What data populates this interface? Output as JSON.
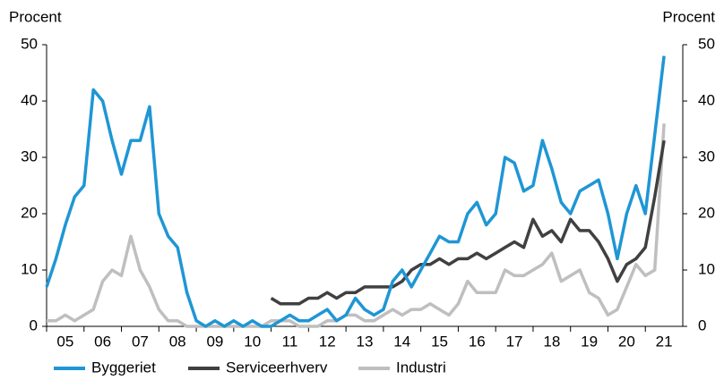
{
  "chart_data": {
    "type": "line",
    "ylabel": "Procent",
    "y2label": "Procent",
    "x": [
      2005,
      2005.25,
      2005.5,
      2005.75,
      2006,
      2006.25,
      2006.5,
      2006.75,
      2007,
      2007.25,
      2007.5,
      2007.75,
      2008,
      2008.25,
      2008.5,
      2008.75,
      2009,
      2009.25,
      2009.5,
      2009.75,
      2010,
      2010.25,
      2010.5,
      2010.75,
      2011,
      2011.25,
      2011.5,
      2011.75,
      2012,
      2012.25,
      2012.5,
      2012.75,
      2013,
      2013.25,
      2013.5,
      2013.75,
      2014,
      2014.25,
      2014.5,
      2014.75,
      2015,
      2015.25,
      2015.5,
      2015.75,
      2016,
      2016.25,
      2016.5,
      2016.75,
      2017,
      2017.25,
      2017.5,
      2017.75,
      2018,
      2018.25,
      2018.5,
      2018.75,
      2019,
      2019.25,
      2019.5,
      2019.75,
      2020,
      2020.25,
      2020.5,
      2020.75,
      2021,
      2021.25,
      2021.5
    ],
    "series": [
      {
        "name": "Byggeriet",
        "color": "#1f96d4",
        "values": [
          7,
          12,
          18,
          23,
          25,
          42,
          40,
          33,
          27,
          33,
          33,
          39,
          20,
          16,
          14,
          6,
          1,
          0,
          1,
          0,
          1,
          0,
          1,
          0,
          0,
          1,
          2,
          1,
          1,
          2,
          3,
          1,
          2,
          5,
          3,
          2,
          3,
          8,
          10,
          7,
          10,
          13,
          16,
          15,
          15,
          20,
          22,
          18,
          20,
          30,
          29,
          24,
          25,
          33,
          28,
          22,
          20,
          24,
          25,
          26,
          20,
          12,
          20,
          25,
          20,
          34,
          48
        ]
      },
      {
        "name": "Serviceerhverv",
        "color": "#404040",
        "values": [
          null,
          null,
          null,
          null,
          null,
          null,
          null,
          null,
          null,
          null,
          null,
          null,
          null,
          null,
          null,
          null,
          null,
          null,
          null,
          null,
          null,
          null,
          null,
          null,
          5,
          4,
          4,
          4,
          5,
          5,
          6,
          5,
          6,
          6,
          7,
          7,
          7,
          7,
          8,
          10,
          11,
          11,
          12,
          11,
          12,
          12,
          13,
          12,
          13,
          14,
          15,
          14,
          19,
          16,
          17,
          15,
          19,
          17,
          17,
          15,
          12,
          8,
          11,
          12,
          14,
          23,
          33
        ]
      },
      {
        "name": "Industri",
        "color": "#bfbfbf",
        "values": [
          1,
          1,
          2,
          1,
          2,
          3,
          8,
          10,
          9,
          16,
          10,
          7,
          3,
          1,
          1,
          0,
          0,
          0,
          0,
          0,
          0,
          0,
          0,
          0,
          1,
          1,
          1,
          0,
          0,
          0,
          1,
          1,
          2,
          2,
          1,
          1,
          2,
          3,
          2,
          3,
          3,
          4,
          3,
          2,
          4,
          8,
          6,
          6,
          6,
          10,
          9,
          9,
          10,
          11,
          13,
          8,
          9,
          10,
          6,
          5,
          2,
          3,
          7,
          11,
          9,
          10,
          36
        ]
      }
    ],
    "xlim": [
      2005,
      2022
    ],
    "xticks": [
      {
        "value": 2005.5,
        "label": "05"
      },
      {
        "value": 2006.5,
        "label": "06"
      },
      {
        "value": 2007.5,
        "label": "07"
      },
      {
        "value": 2008.5,
        "label": "08"
      },
      {
        "value": 2009.5,
        "label": "09"
      },
      {
        "value": 2010.5,
        "label": "10"
      },
      {
        "value": 2011.5,
        "label": "11"
      },
      {
        "value": 2012.5,
        "label": "12"
      },
      {
        "value": 2013.5,
        "label": "13"
      },
      {
        "value": 2014.5,
        "label": "14"
      },
      {
        "value": 2015.5,
        "label": "15"
      },
      {
        "value": 2016.5,
        "label": "16"
      },
      {
        "value": 2017.5,
        "label": "17"
      },
      {
        "value": 2018.5,
        "label": "18"
      },
      {
        "value": 2019.5,
        "label": "19"
      },
      {
        "value": 2020.5,
        "label": "20"
      },
      {
        "value": 2021.5,
        "label": "21"
      }
    ],
    "ylim": [
      0,
      50
    ],
    "yticks": [
      0,
      10,
      20,
      30,
      40,
      50
    ],
    "y2lim": [
      0,
      50
    ],
    "y2ticks": [
      0,
      10,
      20,
      30,
      40,
      50
    ]
  }
}
